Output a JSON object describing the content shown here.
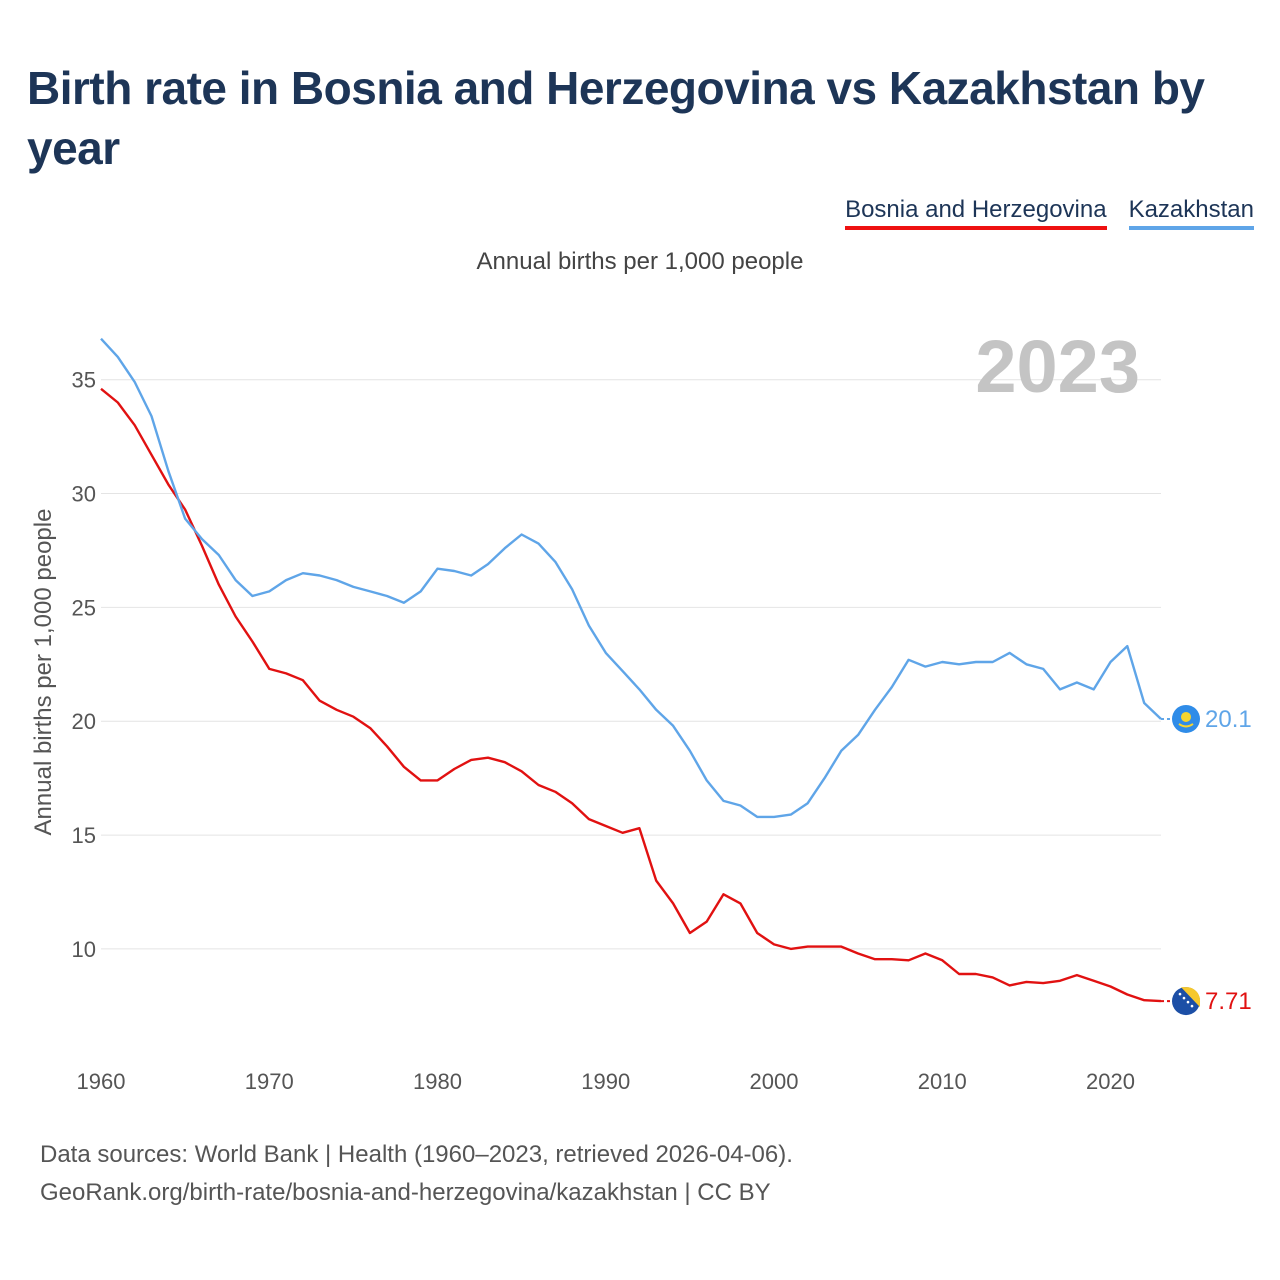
{
  "title": "Birth rate in Bosnia and Herzegovina vs Kazakhstan by year",
  "subtitle": "Annual births per 1,000 people",
  "legend": {
    "bih": "Bosnia and Herzegovina",
    "kaz": "Kazakhstan"
  },
  "source": {
    "line1": "Data sources: World Bank | Health (1960–2023, retrieved 2026-04-06).",
    "line2": "GeoRank.org/birth-rate/bosnia-and-herzegovina/kazakhstan | CC BY"
  },
  "colors": {
    "bih": "#e11111",
    "kaz": "#5fa5e8",
    "title": "#1d3557"
  },
  "chart_data": {
    "type": "line",
    "title": "Birth rate in Bosnia and Herzegovina vs Kazakhstan by year",
    "ylabel": "Annual births per 1,000 people",
    "xlabel": "",
    "year_label": "2023",
    "x_ticks": [
      1960,
      1970,
      1980,
      1990,
      2000,
      2010,
      2020
    ],
    "y_ticks": [
      10,
      15,
      20,
      25,
      30,
      35
    ],
    "xlim": [
      1960,
      2023
    ],
    "ylim": [
      6.0,
      38.5
    ],
    "grid": true,
    "x": [
      1960,
      1961,
      1962,
      1963,
      1964,
      1965,
      1966,
      1967,
      1968,
      1969,
      1970,
      1971,
      1972,
      1973,
      1974,
      1975,
      1976,
      1977,
      1978,
      1979,
      1980,
      1981,
      1982,
      1983,
      1984,
      1985,
      1986,
      1987,
      1988,
      1989,
      1990,
      1991,
      1992,
      1993,
      1994,
      1995,
      1996,
      1997,
      1998,
      1999,
      2000,
      2001,
      2002,
      2003,
      2004,
      2005,
      2006,
      2007,
      2008,
      2009,
      2010,
      2011,
      2012,
      2013,
      2014,
      2015,
      2016,
      2017,
      2018,
      2019,
      2020,
      2021,
      2022,
      2023
    ],
    "series": [
      {
        "name": "Bosnia and Herzegovina",
        "end_label": "7.71",
        "values": [
          34.6,
          34.0,
          33.0,
          31.7,
          30.4,
          29.3,
          27.7,
          26.0,
          24.6,
          23.5,
          22.3,
          22.1,
          21.8,
          20.9,
          20.5,
          20.2,
          19.7,
          18.9,
          18.0,
          17.4,
          17.4,
          17.9,
          18.3,
          18.4,
          18.2,
          17.8,
          17.2,
          16.9,
          16.4,
          15.7,
          15.4,
          15.1,
          15.3,
          13.0,
          12.0,
          10.7,
          11.2,
          12.4,
          12.0,
          10.7,
          10.2,
          10.0,
          10.1,
          10.1,
          10.1,
          9.8,
          9.55,
          9.55,
          9.5,
          9.8,
          9.5,
          8.9,
          8.9,
          8.75,
          8.4,
          8.55,
          8.5,
          8.6,
          8.85,
          8.6,
          8.35,
          8.0,
          7.75,
          7.71
        ]
      },
      {
        "name": "Kazakhstan",
        "end_label": "20.1",
        "values": [
          36.8,
          36.0,
          34.9,
          33.4,
          31.0,
          28.9,
          28.0,
          27.3,
          26.2,
          25.5,
          25.7,
          26.2,
          26.5,
          26.4,
          26.2,
          25.9,
          25.7,
          25.5,
          25.2,
          25.7,
          26.7,
          26.6,
          26.4,
          26.9,
          27.6,
          28.2,
          27.8,
          27.0,
          25.8,
          24.2,
          23.0,
          22.2,
          21.4,
          20.5,
          19.8,
          18.7,
          17.4,
          16.5,
          16.3,
          15.8,
          15.8,
          15.9,
          16.4,
          17.5,
          18.7,
          19.4,
          20.5,
          21.5,
          22.7,
          22.4,
          22.6,
          22.5,
          22.6,
          22.6,
          23.0,
          22.5,
          22.3,
          21.4,
          21.7,
          21.4,
          22.6,
          23.3,
          20.8,
          20.1
        ]
      }
    ]
  }
}
